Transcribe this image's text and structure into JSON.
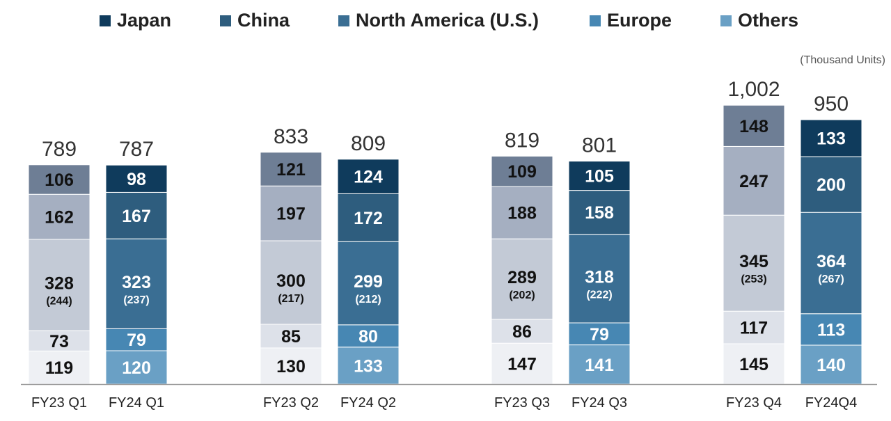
{
  "unit_note": "(Thousand Units)",
  "colors": {
    "japan": "#0f3b5c",
    "china": "#2e5d7e",
    "na": "#3a6e93",
    "europe": "#4787b3",
    "others": "#6aa0c5",
    "fy23_japan": "#6e7e95",
    "fy23_china": "#a5afc1",
    "fy23_na": "#c3cad6",
    "fy23_europe": "#dde1e9",
    "fy23_others": "#eef0f4",
    "axis": "#999999"
  },
  "chart_data": {
    "type": "bar",
    "stacked": true,
    "unit": "(Thousand Units)",
    "legend": [
      "Japan",
      "China",
      "North America (U.S.)",
      "Europe",
      "Others"
    ],
    "legend_position": "top",
    "categories": [
      "FY23 Q1",
      "FY24 Q1",
      "FY23 Q2",
      "FY24 Q2",
      "FY23 Q3",
      "FY24 Q3",
      "FY23 Q4",
      "FY24Q4"
    ],
    "series": [
      {
        "name": "Others",
        "values": [
          119,
          120,
          130,
          133,
          147,
          141,
          145,
          140
        ]
      },
      {
        "name": "Europe",
        "values": [
          73,
          79,
          85,
          80,
          86,
          79,
          117,
          113
        ]
      },
      {
        "name": "North America (U.S.)",
        "values": [
          328,
          323,
          300,
          299,
          289,
          318,
          345,
          364
        ]
      },
      {
        "name": "China",
        "values": [
          162,
          167,
          197,
          172,
          188,
          158,
          247,
          200
        ]
      },
      {
        "name": "Japan",
        "values": [
          106,
          98,
          121,
          124,
          109,
          105,
          148,
          133
        ]
      }
    ],
    "us_values": [
      "(244)",
      "(237)",
      "(217)",
      "(212)",
      "(202)",
      "(222)",
      "(253)",
      "(267)"
    ],
    "totals": [
      "789",
      "787",
      "833",
      "809",
      "819",
      "801",
      "1,002",
      "950"
    ],
    "ylim": [
      0,
      1002
    ],
    "grid": false
  }
}
